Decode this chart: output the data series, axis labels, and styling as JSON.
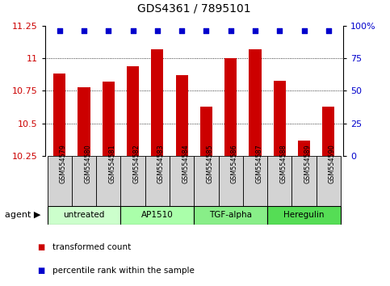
{
  "title": "GDS4361 / 7895101",
  "samples": [
    "GSM554579",
    "GSM554580",
    "GSM554581",
    "GSM554582",
    "GSM554583",
    "GSM554584",
    "GSM554585",
    "GSM554586",
    "GSM554587",
    "GSM554588",
    "GSM554589",
    "GSM554590"
  ],
  "bar_values": [
    10.88,
    10.78,
    10.82,
    10.94,
    11.07,
    10.87,
    10.63,
    11.0,
    11.07,
    10.83,
    10.37,
    10.63
  ],
  "percentile_values": [
    11.21,
    11.21,
    11.21,
    11.21,
    11.21,
    11.21,
    11.21,
    11.21,
    11.21,
    11.21,
    11.21,
    11.21
  ],
  "ylim": [
    10.25,
    11.25
  ],
  "yticks": [
    10.25,
    10.5,
    10.75,
    11.0,
    11.25
  ],
  "ytick_labels": [
    "10.25",
    "10.5",
    "10.75",
    "11",
    "11.25"
  ],
  "right_yticks": [
    0,
    25,
    50,
    75,
    100
  ],
  "right_ytick_labels": [
    "0",
    "25",
    "50",
    "75",
    "100%"
  ],
  "bar_color": "#cc0000",
  "percentile_color": "#0000cc",
  "agent_groups": [
    {
      "label": "untreated",
      "start": 0,
      "end": 2,
      "color": "#ccffcc"
    },
    {
      "label": "AP1510",
      "start": 3,
      "end": 5,
      "color": "#aaffaa"
    },
    {
      "label": "TGF-alpha",
      "start": 6,
      "end": 8,
      "color": "#88ee88"
    },
    {
      "label": "Heregulin",
      "start": 9,
      "end": 11,
      "color": "#55dd55"
    }
  ],
  "legend_items": [
    {
      "label": "transformed count",
      "color": "#cc0000"
    },
    {
      "label": "percentile rank within the sample",
      "color": "#0000cc"
    }
  ],
  "background_color": "#ffffff",
  "grid_color": "#000000",
  "tick_label_color_left": "#cc0000",
  "tick_label_color_right": "#0000cc",
  "sample_box_color": "#d3d3d3"
}
